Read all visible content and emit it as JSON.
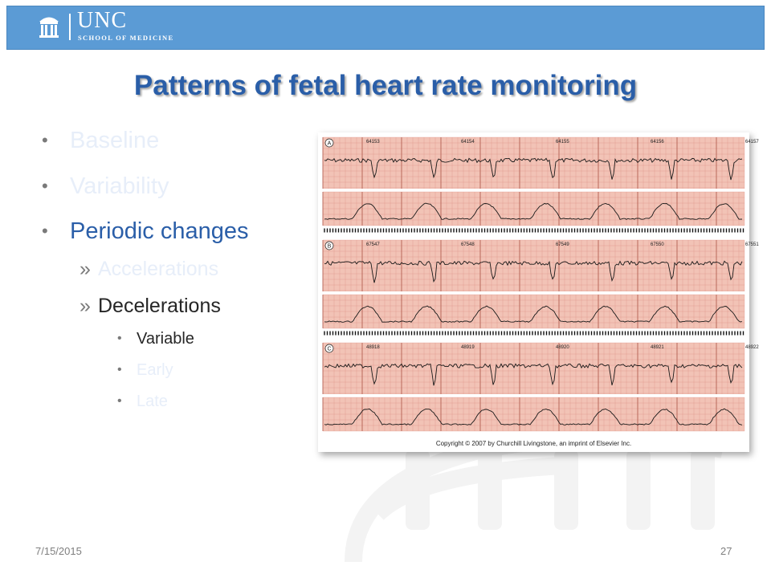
{
  "header": {
    "logo_unc": "UNC",
    "logo_school": "SCHOOL OF MEDICINE"
  },
  "slide": {
    "title": "Patterns of fetal heart rate monitoring",
    "bullets": [
      {
        "text": "Baseline",
        "level": 1,
        "state": "dimmed"
      },
      {
        "text": "Variability",
        "level": 1,
        "state": "dimmed"
      },
      {
        "text": "Periodic changes",
        "level": 1,
        "state": "active"
      },
      {
        "text": "Accelerations",
        "level": 2,
        "state": "dimmed"
      },
      {
        "text": "Decelerations",
        "level": 2,
        "state": "active"
      },
      {
        "text": "Variable",
        "level": 3,
        "state": "active"
      },
      {
        "text": "Early",
        "level": 3,
        "state": "dimmed"
      },
      {
        "text": "Late",
        "level": 3,
        "state": "dimmed"
      }
    ],
    "bullet_symbols": {
      "level1": "•",
      "level2": "»",
      "level3": "•"
    }
  },
  "figure": {
    "panel_labels": [
      "A",
      "B",
      "C"
    ],
    "strip_numbers": [
      [
        "64153",
        "64154",
        "64155",
        "64156",
        "64157"
      ],
      [
        "67547",
        "67548",
        "67549",
        "67550",
        "67551"
      ],
      [
        "48918",
        "48919",
        "48920",
        "48921",
        "48922"
      ]
    ],
    "copyright": "Copyright © 2007 by Churchill Livingstone, an imprint of Elsevier Inc."
  },
  "footer": {
    "date": "7/15/2015",
    "page": "27"
  },
  "colors": {
    "header_bar": "#5b9bd5",
    "title": "#2a5ea8",
    "dimmed_text": "#e7eef9",
    "strip_paper": "#f2c3b6",
    "strip_grid": "#d9897a",
    "trace": "#1a1a1a"
  }
}
